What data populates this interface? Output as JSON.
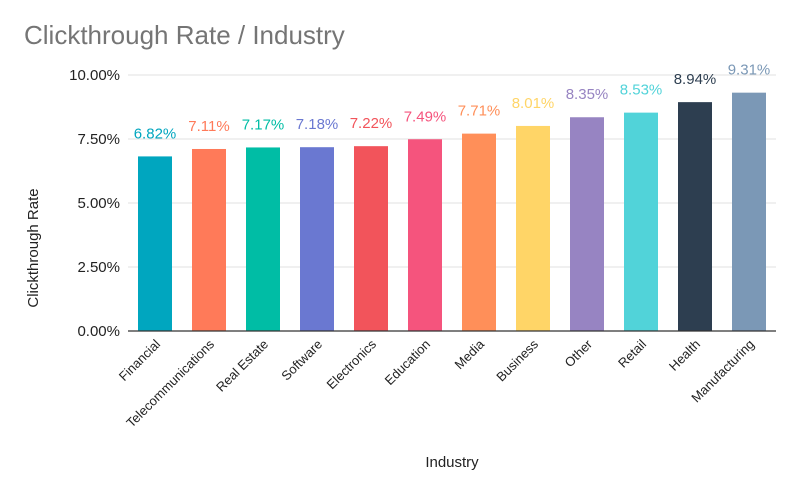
{
  "chart_data": {
    "type": "bar",
    "title": "Clickthrough Rate / Industry",
    "xlabel": "Industry",
    "ylabel": "Clickthrough Rate",
    "ylim": [
      0,
      10
    ],
    "yticks": [
      0,
      2.5,
      5,
      7.5,
      10
    ],
    "ytick_labels": [
      "0.00%",
      "2.50%",
      "5.00%",
      "7.50%",
      "10.00%"
    ],
    "grid": true,
    "categories": [
      "Financial",
      "Telecommunications",
      "Real Estate",
      "Software",
      "Electronics",
      "Education",
      "Media",
      "Business",
      "Other",
      "Retail",
      "Health",
      "Manufacturing"
    ],
    "values": [
      6.82,
      7.11,
      7.17,
      7.18,
      7.22,
      7.49,
      7.71,
      8.01,
      8.35,
      8.53,
      8.94,
      9.31
    ],
    "data_labels": [
      "6.82%",
      "7.11%",
      "7.17%",
      "7.18%",
      "7.22%",
      "7.49%",
      "7.71%",
      "8.01%",
      "8.35%",
      "8.53%",
      "8.94%",
      "9.31%"
    ],
    "colors": [
      "#00A6BF",
      "#FF7A59",
      "#00BDA5",
      "#6A78D1",
      "#F2545B",
      "#F5547D",
      "#FF8F59",
      "#FFD567",
      "#9784C2",
      "#51D3D9",
      "#2D3E50",
      "#7B98B6"
    ],
    "label_colors": [
      "#00A6BF",
      "#FF7A59",
      "#00BDA5",
      "#6A78D1",
      "#F2545B",
      "#F5547D",
      "#FF8F59",
      "#FFD567",
      "#9784C2",
      "#51D3D9",
      "#2D3E50",
      "#7B98B6"
    ]
  }
}
